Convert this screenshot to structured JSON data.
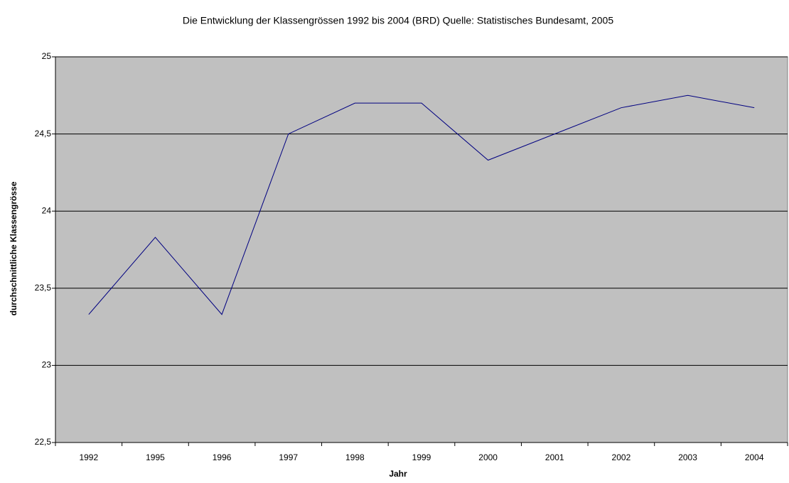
{
  "chart_data": {
    "type": "line",
    "title": "Die Entwicklung der Klassengrössen 1992 bis 2004 (BRD) Quelle: Statistisches Bundesamt, 2005",
    "x_label": "Jahr",
    "y_label": "durchschnittliche Klassengrösse",
    "categories": [
      "1992",
      "1995",
      "1996",
      "1997",
      "1998",
      "1999",
      "2000",
      "2001",
      "2002",
      "2003",
      "2004"
    ],
    "series": [
      {
        "name": "durchschnittliche Klassengrösse",
        "color": "#000080",
        "values": [
          23.33,
          23.83,
          23.33,
          24.5,
          24.7,
          24.7,
          24.33,
          24.5,
          24.67,
          24.75,
          24.67
        ]
      }
    ],
    "ylim": [
      22.5,
      25
    ],
    "yticks": [
      {
        "value": 22.5,
        "label": "22,5"
      },
      23,
      {
        "value": 23.5,
        "label": "23,5"
      },
      24,
      {
        "value": 24.5,
        "label": "24,5"
      },
      25
    ],
    "grid": true,
    "plot_color": "#c0c0c0"
  }
}
